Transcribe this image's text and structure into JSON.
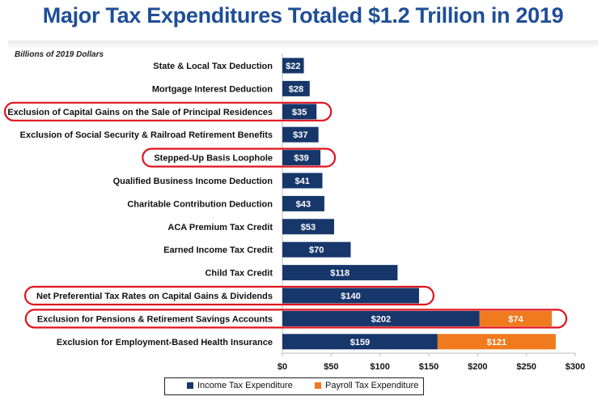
{
  "header": {
    "title": "Major Tax Expenditures Totaled $1.2 Trillion in 2019",
    "units": "Billions of 2019 Dollars"
  },
  "colors": {
    "income": "#17376b",
    "payroll": "#f07a1e",
    "highlight": "#e0141e"
  },
  "chart_data": {
    "type": "bar",
    "orientation": "horizontal",
    "stacked": true,
    "title": "Major Tax Expenditures Totaled $1.2 Trillion in 2019",
    "units": "Billions of 2019 Dollars",
    "xlim": [
      0,
      300
    ],
    "xticks": [
      "$0",
      "$50",
      "$100",
      "$150",
      "$200",
      "$250",
      "$300"
    ],
    "xtick_values": [
      0,
      50,
      100,
      150,
      200,
      250,
      300
    ],
    "legend_position": "bottom",
    "categories": [
      "State & Local Tax Deduction",
      "Mortgage Interest Deduction",
      "Exclusion of Capital Gains on the Sale of Principal Residences",
      "Exclusion of Social Security & Railroad Retirement Benefits",
      "Stepped-Up Basis Loophole",
      "Qualified Business Income Deduction",
      "Charitable Contribution Deduction",
      "ACA Premium Tax Credit",
      "Earned Income Tax Credit",
      "Child Tax Credit",
      "Net Preferential Tax Rates on Capital Gains & Dividends",
      "Exclusion for Pensions & Retirement Savings Accounts",
      "Exclusion for Employment-Based Health Insurance"
    ],
    "series": [
      {
        "name": "Income Tax Expenditure",
        "values": [
          22,
          28,
          35,
          37,
          39,
          41,
          43,
          53,
          70,
          118,
          140,
          202,
          159
        ],
        "labels": [
          "$22",
          "$28",
          "$35",
          "$37",
          "$39",
          "$41",
          "$43",
          "$53",
          "$70",
          "$118",
          "$140",
          "$202",
          "$159"
        ]
      },
      {
        "name": "Payroll Tax Expenditure",
        "values": [
          0,
          0,
          0,
          0,
          0,
          0,
          0,
          0,
          0,
          0,
          0,
          74,
          121
        ],
        "labels": [
          "",
          "",
          "",
          "",
          "",
          "",
          "",
          "",
          "",
          "",
          "",
          "$74",
          "$121"
        ]
      }
    ],
    "highlighted_categories": [
      "Exclusion of Capital Gains on the Sale of Principal Residences",
      "Stepped-Up Basis Loophole",
      "Net Preferential Tax Rates on Capital Gains & Dividends",
      "Exclusion for Pensions & Retirement Savings Accounts"
    ]
  }
}
